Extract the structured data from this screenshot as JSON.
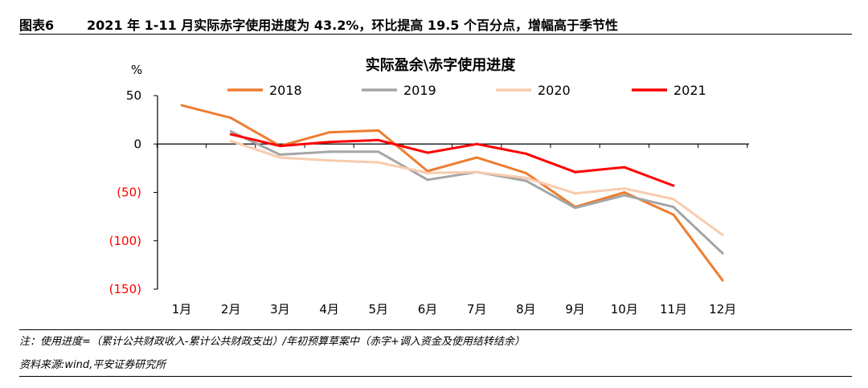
{
  "header": {
    "figure_no": "图表6",
    "title": "2021 年 1-11 月实际赤字使用进度为 43.2%，环比提高 19.5 个百分点，增幅高于季节性"
  },
  "note": "注：使用进度=（累计公共财政收入-累计公共财政支出）/年初预算草案中（赤字+调入资金及使用结转结余）",
  "source": "资料来源:wind,平安证券研究所",
  "colors": {
    "s2018": "#ED7D31",
    "s2019": "#A5A5A5",
    "s2020": "#F8CBAD",
    "s2021": "#FF0000",
    "negative_tick": "#FF0000"
  },
  "chart_data": {
    "type": "line",
    "title": "实际盈余\\赤字使用进度",
    "ylabel": "%",
    "xlabel": "",
    "ylim": [
      -150,
      50
    ],
    "yticks": [
      {
        "value": 50,
        "label": "50"
      },
      {
        "value": 0,
        "label": "0"
      },
      {
        "value": -50,
        "label": "(50)"
      },
      {
        "value": -100,
        "label": "(100)"
      },
      {
        "value": -150,
        "label": "(150)"
      }
    ],
    "categories": [
      "1月",
      "2月",
      "3月",
      "4月",
      "5月",
      "6月",
      "7月",
      "8月",
      "9月",
      "10月",
      "11月",
      "12月"
    ],
    "legend_position": "top",
    "series": [
      {
        "name": "2018",
        "color": "#ED7D31",
        "values": [
          40,
          27,
          -2,
          12,
          14,
          -28,
          -14,
          -30,
          -65,
          -50,
          -73,
          -141
        ]
      },
      {
        "name": "2019",
        "color": "#A5A5A5",
        "values": [
          null,
          13,
          -11,
          -8,
          -8,
          -37,
          -29,
          -38,
          -66,
          -53,
          -65,
          -113
        ]
      },
      {
        "name": "2020",
        "color": "#F8CBAD",
        "values": [
          null,
          3,
          -14,
          -17,
          -19,
          -30,
          -29,
          -35,
          -51,
          -46,
          -57,
          -94
        ]
      },
      {
        "name": "2021",
        "color": "#FF0000",
        "values": [
          null,
          10,
          -2,
          2,
          4,
          -9,
          0,
          -10,
          -29,
          -24,
          -43,
          null
        ]
      }
    ]
  }
}
